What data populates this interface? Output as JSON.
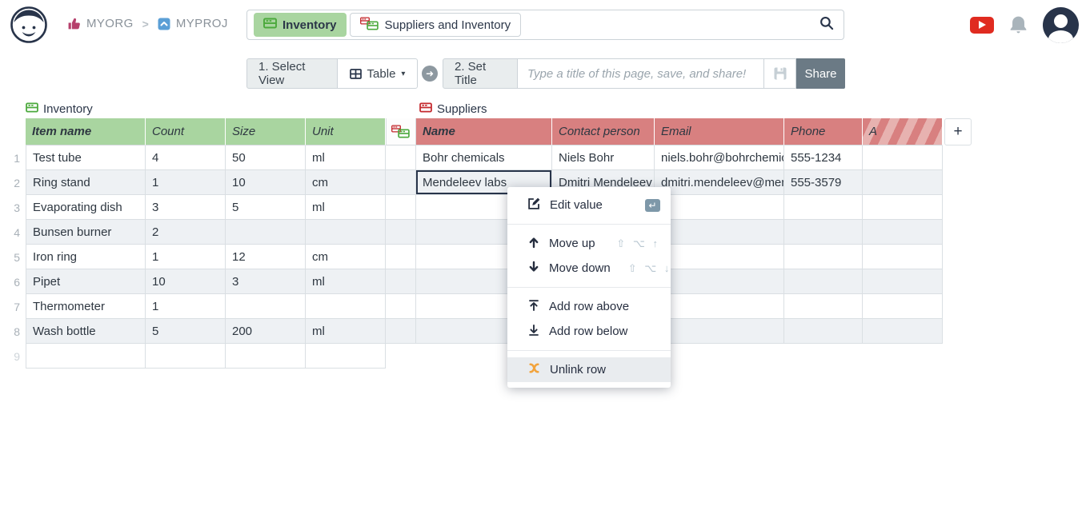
{
  "topbar": {
    "org": "MYORG",
    "project": "MYPROJ",
    "tabs": [
      {
        "label": "Inventory",
        "active": true,
        "icon": "green-table-icon"
      },
      {
        "label": "Suppliers and Inventory",
        "active": false,
        "icon": "red-green-table-icon"
      }
    ]
  },
  "toolbar": {
    "step1_label": "1. Select View",
    "view_button_label": "Table",
    "view_button_caret": "▾",
    "step2_label": "2. Set Title",
    "title_placeholder": "Type a title of this page, save, and share!",
    "share_label": "Share"
  },
  "inventory": {
    "title": "Inventory",
    "columns": [
      "Item name",
      "Count",
      "Size",
      "Unit"
    ],
    "rows": [
      {
        "num": "1",
        "cells": [
          "Test tube",
          "4",
          "50",
          "ml"
        ]
      },
      {
        "num": "2",
        "cells": [
          "Ring stand",
          "1",
          "10",
          "cm"
        ]
      },
      {
        "num": "3",
        "cells": [
          "Evaporating dish",
          "3",
          "5",
          "ml"
        ]
      },
      {
        "num": "4",
        "cells": [
          "Bunsen burner",
          "2",
          "",
          ""
        ]
      },
      {
        "num": "5",
        "cells": [
          "Iron ring",
          "1",
          "12",
          "cm"
        ]
      },
      {
        "num": "6",
        "cells": [
          "Pipet",
          "10",
          "3",
          "ml"
        ]
      },
      {
        "num": "7",
        "cells": [
          "Thermometer",
          "1",
          "",
          ""
        ]
      },
      {
        "num": "8",
        "cells": [
          "Wash bottle",
          "5",
          "200",
          "ml"
        ]
      },
      {
        "num": "9",
        "cells": [
          "",
          "",
          "",
          ""
        ]
      }
    ]
  },
  "suppliers": {
    "title": "Suppliers",
    "columns": [
      "Name",
      "Contact person",
      "Email",
      "Phone",
      "A"
    ],
    "hatched_column": "A",
    "add_column_label": "+",
    "rows": [
      {
        "cells": [
          "Bohr chemicals",
          "Niels Bohr",
          "niels.bohr@bohrchemica",
          "555-1234",
          ""
        ]
      },
      {
        "cells": [
          "Mendeleev labs",
          "Dmitri Mendeleev",
          "dmitri.mendeleev@mend",
          "555-3579",
          ""
        ],
        "selected_cell": 0
      },
      {
        "cells": [
          "",
          "",
          "",
          "",
          ""
        ]
      },
      {
        "cells": [
          "",
          "",
          "",
          "",
          ""
        ]
      },
      {
        "cells": [
          "",
          "",
          "",
          "",
          ""
        ]
      },
      {
        "cells": [
          "",
          "",
          "",
          "",
          ""
        ]
      },
      {
        "cells": [
          "",
          "",
          "",
          "",
          ""
        ]
      },
      {
        "cells": [
          "",
          "",
          "",
          "",
          ""
        ]
      }
    ]
  },
  "context_menu": {
    "items": [
      {
        "icon": "edit-icon",
        "label": "Edit value",
        "badge": "↵"
      },
      {
        "type": "sep"
      },
      {
        "icon": "arrow-up-icon",
        "label": "Move up",
        "shortcut": "⇧ ⌥ ↑"
      },
      {
        "icon": "arrow-down-icon",
        "label": "Move down",
        "shortcut": "⇧ ⌥ ↓"
      },
      {
        "type": "sep"
      },
      {
        "icon": "add-row-above-icon",
        "label": "Add row above"
      },
      {
        "icon": "add-row-below-icon",
        "label": "Add row below"
      },
      {
        "type": "sep"
      },
      {
        "icon": "unlink-icon",
        "label": "Unlink row",
        "hover": true
      }
    ]
  },
  "colors": {
    "accent_navy": "#262e3f",
    "green_header": "#a9d5a0",
    "red_header": "#d88080",
    "row_alt": "#eef1f4",
    "share_button": "#6b7a85",
    "unlink_orange": "#f2a33c",
    "youtube_red": "#e02b20",
    "project_blue": "#5b9fd6",
    "org_pink": "#b6406c"
  }
}
